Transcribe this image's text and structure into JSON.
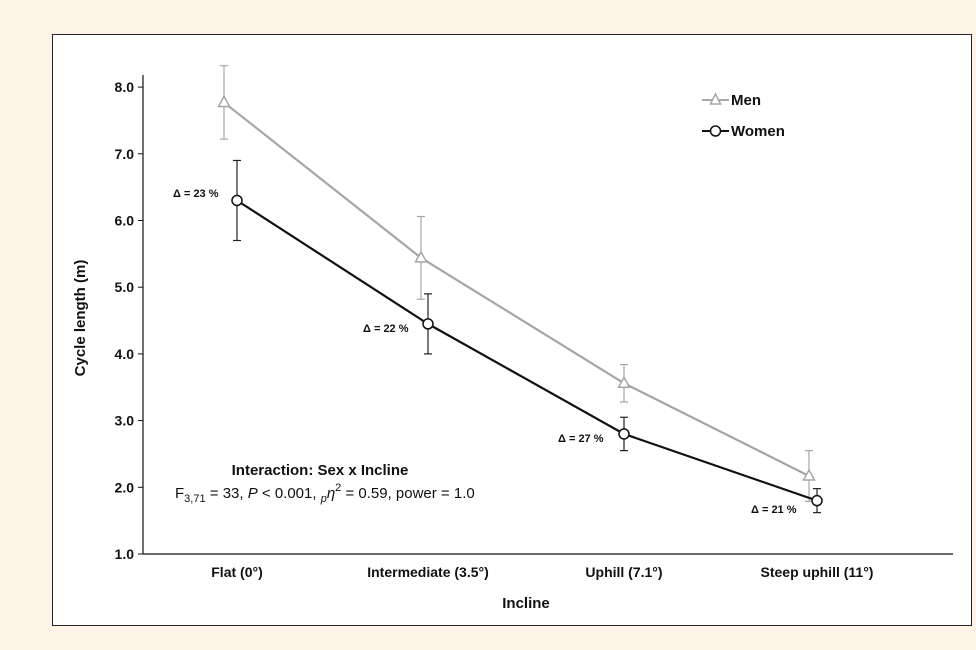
{
  "chart_data": {
    "type": "line",
    "xlabel": "Incline",
    "ylabel": "Cycle length (m)",
    "categories": [
      "Flat (0°)",
      "Intermediate (3.5°)",
      "Uphill (7.1°)",
      "Steep uphill (11°)"
    ],
    "ylim": [
      1.0,
      8.0
    ],
    "yticks": [
      "1.0",
      "2.0",
      "3.0",
      "4.0",
      "5.0",
      "6.0",
      "7.0",
      "8.0"
    ],
    "grid": false,
    "legend_position": "top-right",
    "series": [
      {
        "name": "Men",
        "marker": "triangle",
        "color": "#a6a6a6",
        "values": [
          7.77,
          5.44,
          3.56,
          2.17
        ],
        "error": [
          0.55,
          0.62,
          0.28,
          0.38
        ]
      },
      {
        "name": "Women",
        "marker": "circle",
        "color": "#111111",
        "values": [
          6.3,
          4.45,
          2.8,
          1.8
        ],
        "error": [
          0.6,
          0.45,
          0.25,
          0.18
        ]
      }
    ],
    "differences": [
      "Δ = 23 %",
      "Δ = 22 %",
      "Δ = 27 %",
      "Δ = 21 %"
    ],
    "annotation": {
      "title": "Interaction: Sex x Incline",
      "stat_F": "F",
      "stat_F_sub": "3,71",
      "stat_rest1": " = 33, ",
      "stat_P": "P",
      "stat_rest2": " < 0.001, ",
      "stat_eta_sub": "p",
      "stat_eta": "η",
      "stat_eta_sup": "2",
      "stat_rest3": " = 0.59, power = 1.0"
    }
  }
}
